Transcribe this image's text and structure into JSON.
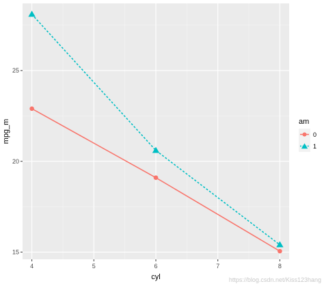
{
  "chart_data": {
    "type": "line",
    "xlabel": "cyl",
    "ylabel": "mpg_m",
    "x": [
      4,
      6,
      8
    ],
    "xlim": [
      3.85,
      8.15
    ],
    "ylim": [
      14.6,
      28.7
    ],
    "x_ticks": [
      4,
      5,
      6,
      7,
      8
    ],
    "y_ticks": [
      15,
      20,
      25
    ],
    "x_tick_labels": [
      "4",
      "5",
      "6",
      "7",
      "8"
    ],
    "y_tick_labels": [
      "15",
      "20",
      "25"
    ],
    "grid": true,
    "legend": {
      "title": "am",
      "position": "right"
    },
    "series": [
      {
        "name": "0",
        "values": [
          22.9,
          19.1,
          15.05
        ],
        "color": "#F8766D",
        "line": "solid",
        "marker": "circle"
      },
      {
        "name": "1",
        "values": [
          28.1,
          20.6,
          15.4
        ],
        "color": "#00BFC4",
        "line": "dotted",
        "marker": "triangle"
      }
    ]
  },
  "watermark": "https://blog.csdn.net/Kiss123hang"
}
